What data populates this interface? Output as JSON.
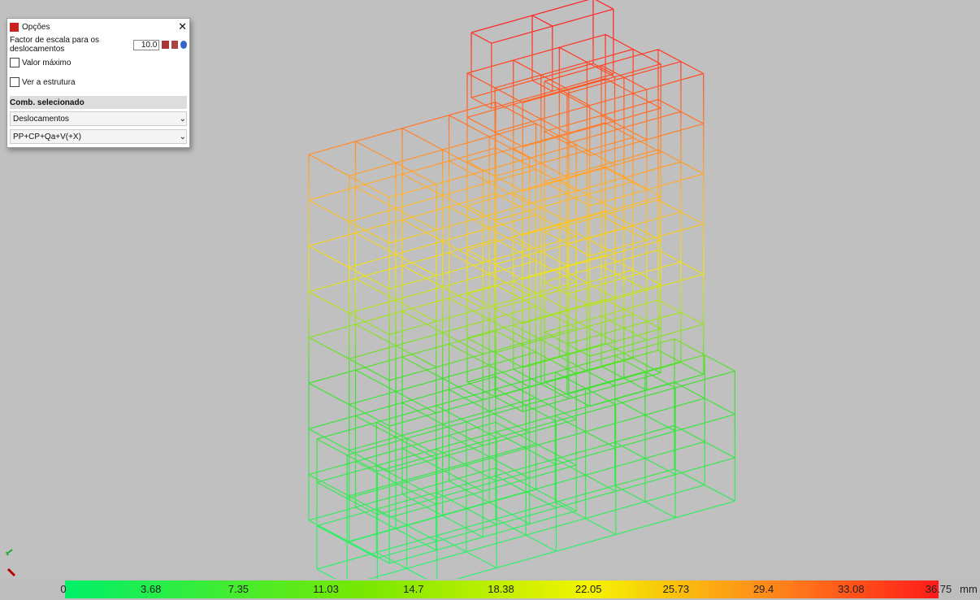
{
  "dialog": {
    "title": "Opções",
    "scale_label": "Factor de escala para os deslocamentos",
    "scale_value": "10.0",
    "options": [
      "Valor máximo",
      "Ver a estrutura"
    ],
    "section": "Comb. selecionado",
    "selects": [
      "Deslocamentos",
      "PP+CP+Qa+V(+X)"
    ]
  },
  "color_scale": {
    "labels": [
      "0",
      "3.68",
      "7.35",
      "11.03",
      "14.7",
      "18.38",
      "22.05",
      "25.73",
      "29.4",
      "33.08",
      "36.75"
    ],
    "unit": "mm"
  }
}
